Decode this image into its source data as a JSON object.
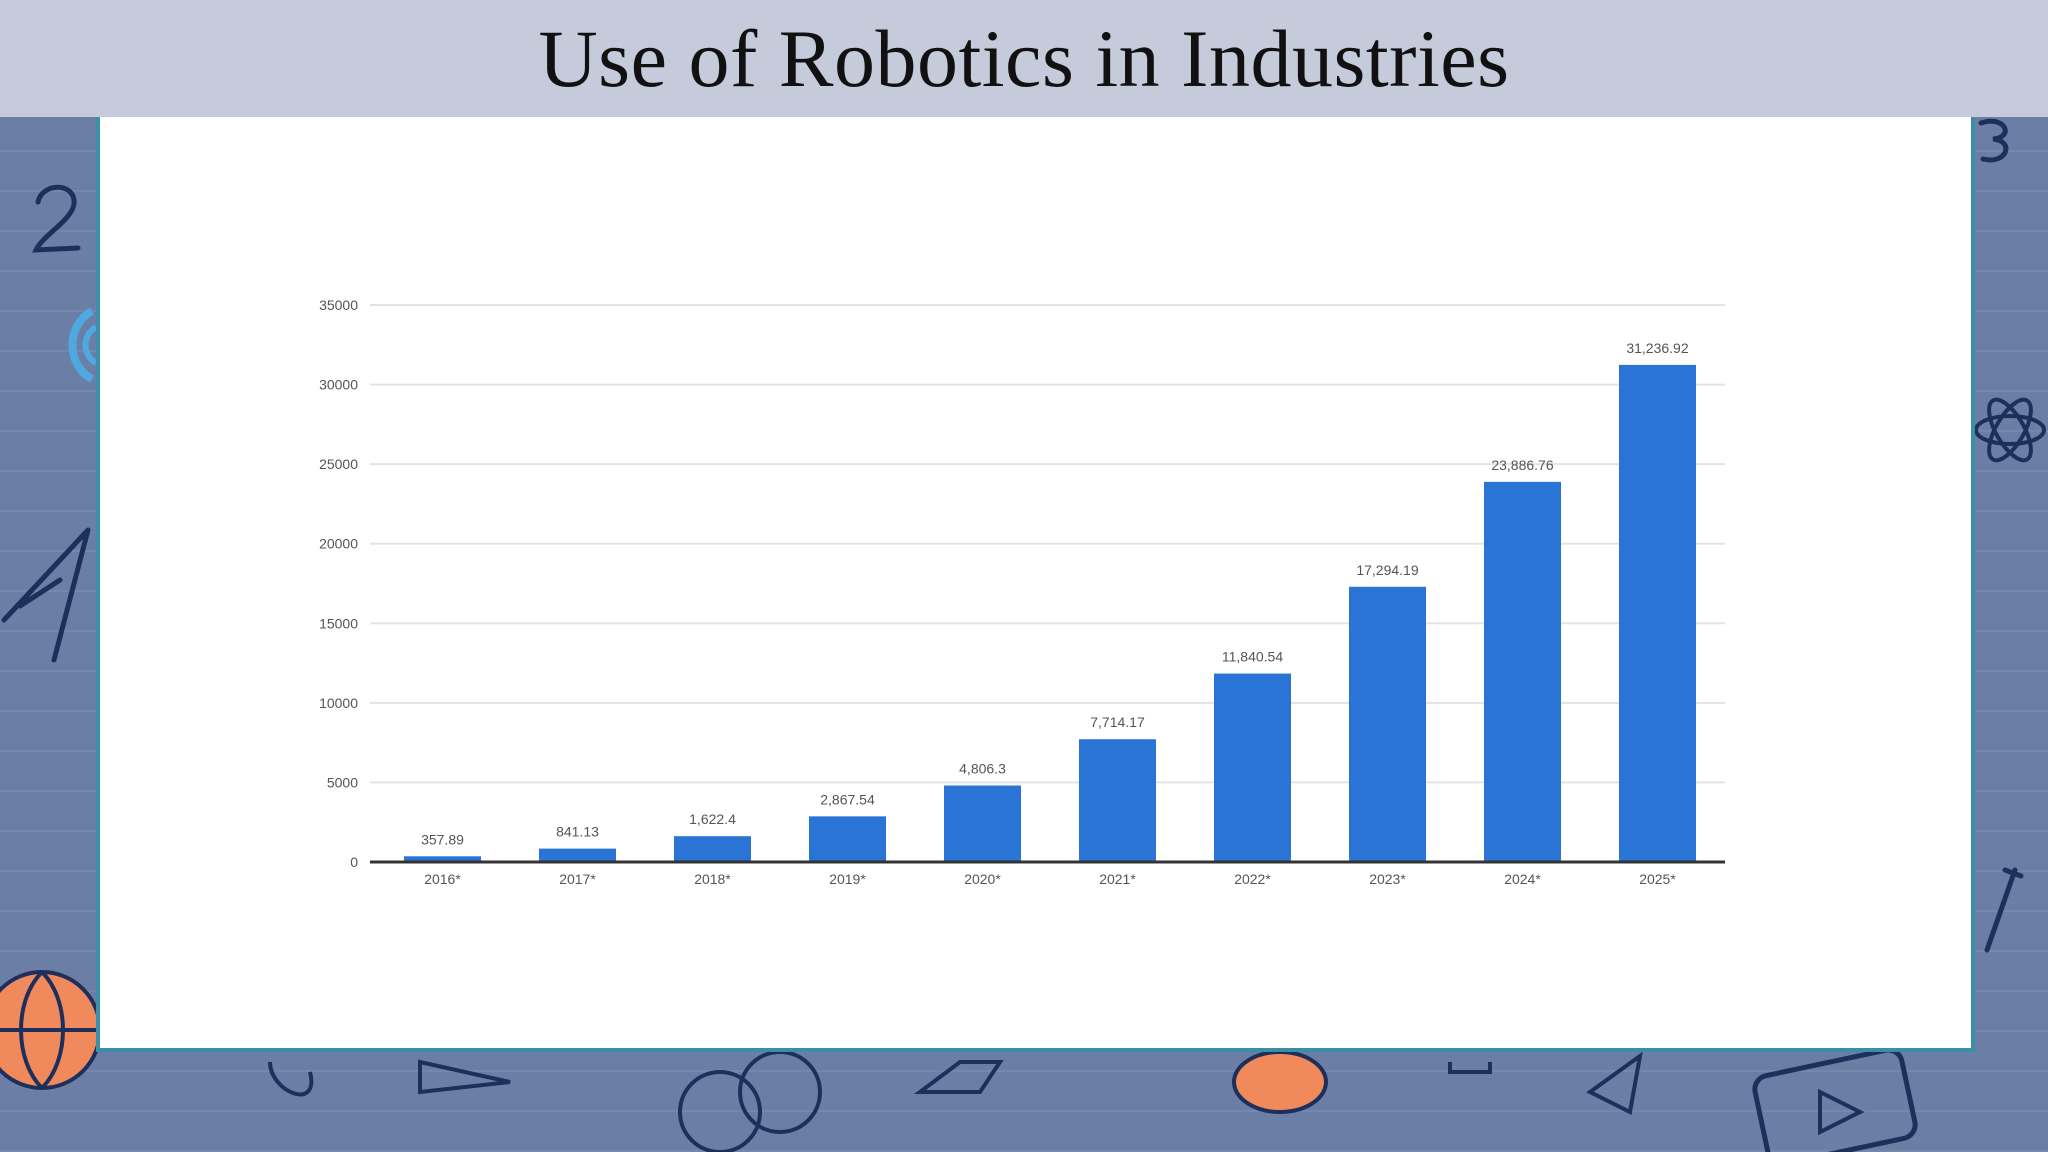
{
  "slide": {
    "title": "Use of Robotics in Industries"
  },
  "colors": {
    "bar": "#2a74d6",
    "title_bar": "#c6cbdb",
    "background": "#6b7fa6",
    "panel_border": "#3a8ea6"
  },
  "chart_data": {
    "type": "bar",
    "title": "",
    "xlabel": "",
    "ylabel": "",
    "categories": [
      "2016*",
      "2017*",
      "2018*",
      "2019*",
      "2020*",
      "2021*",
      "2022*",
      "2023*",
      "2024*",
      "2025*"
    ],
    "values": [
      357.89,
      841.13,
      1622.4,
      2867.54,
      4806.3,
      7714.17,
      11840.54,
      17294.19,
      23886.76,
      31236.92
    ],
    "data_labels": [
      "357.89",
      "841.13",
      "1,622.4",
      "2,867.54",
      "4,806.3",
      "7,714.17",
      "11,840.54",
      "17,294.19",
      "23,886.76",
      "31,236.92"
    ],
    "yticks": [
      0,
      5000,
      10000,
      15000,
      20000,
      25000,
      30000,
      35000
    ],
    "ylim": [
      0,
      35000
    ],
    "grid": true,
    "legend": "none"
  }
}
